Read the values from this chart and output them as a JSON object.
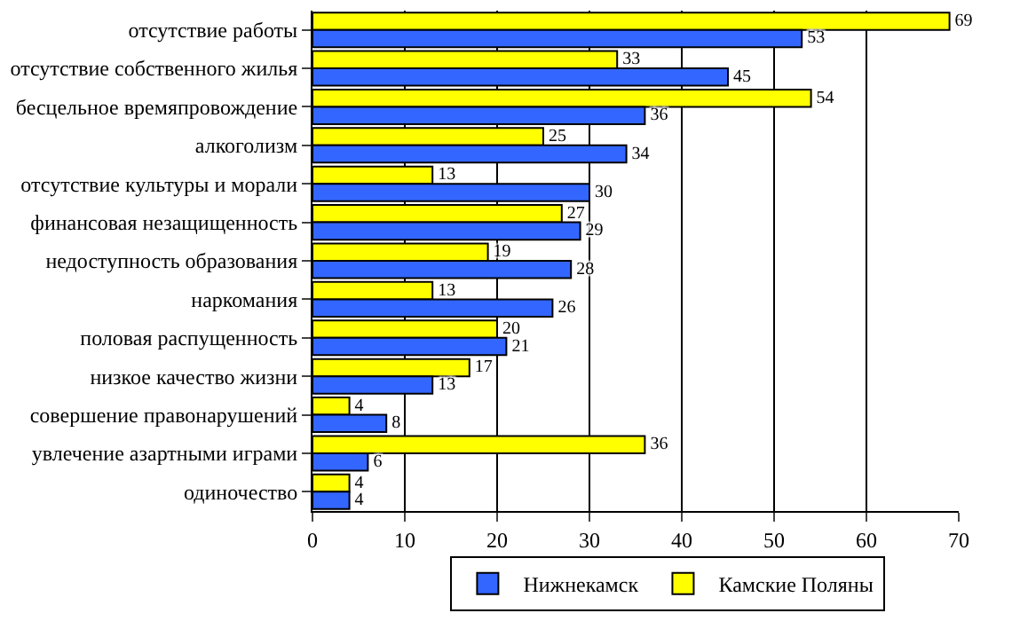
{
  "chart_data": {
    "type": "bar",
    "orientation": "horizontal",
    "categories": [
      "отсутствие работы",
      "отсутствие собственного жилья",
      "бесцельное времяпровождение",
      "алкоголизм",
      "отсутствие культуры и морали",
      "финансовая незащищенность",
      "недоступность образования",
      "наркомания",
      "половая распущенность",
      "низкое качество жизни",
      "совершение правонарушений",
      "увлечение азартными играми",
      "одиночество"
    ],
    "series": [
      {
        "name": "Нижнекамск",
        "color": "#3366ff",
        "values": [
          53,
          45,
          36,
          34,
          30,
          29,
          28,
          26,
          21,
          13,
          8,
          6,
          4
        ]
      },
      {
        "name": "Камские Поляны",
        "color": "#ffff00",
        "values": [
          69,
          33,
          54,
          25,
          13,
          27,
          19,
          13,
          20,
          17,
          4,
          36,
          4
        ]
      }
    ],
    "xlim": [
      0,
      70
    ],
    "xticks": [
      0,
      10,
      20,
      30,
      40,
      50,
      60,
      70
    ],
    "grid": "x",
    "legend": "bottom",
    "data_labels": true
  }
}
